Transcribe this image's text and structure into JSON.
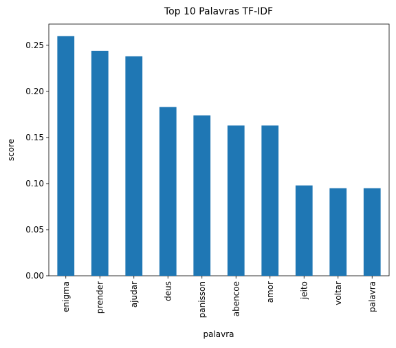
{
  "chart_data": {
    "type": "bar",
    "title": "Top 10 Palavras TF-IDF",
    "xlabel": "palavra",
    "ylabel": "score",
    "categories": [
      "enigma",
      "prender",
      "ajudar",
      "deus",
      "panisson",
      "abencoe",
      "amor",
      "jeito",
      "voltar",
      "palavra"
    ],
    "values": [
      0.26,
      0.244,
      0.238,
      0.183,
      0.174,
      0.163,
      0.163,
      0.098,
      0.095,
      0.095
    ],
    "ylim": [
      0,
      0.273
    ],
    "yticks": [
      0.0,
      0.05,
      0.1,
      0.15,
      0.2,
      0.25
    ],
    "ytick_labels": [
      "0.00",
      "0.05",
      "0.10",
      "0.15",
      "0.20",
      "0.25"
    ],
    "bar_color": "#1f77b4",
    "grid": false,
    "legend": "none"
  }
}
